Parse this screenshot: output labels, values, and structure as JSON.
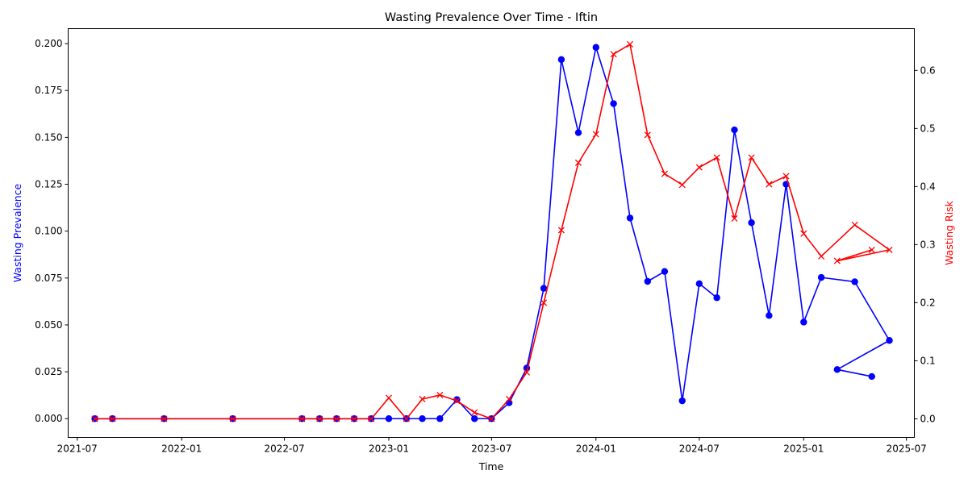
{
  "chart_data": {
    "type": "line",
    "title": "Wasting Prevalence Over Time - Iftin",
    "xlabel": "Time",
    "ylabel_left": "Wasting Prevalence",
    "ylabel_right": "Wasting Risk",
    "x_tick_labels": [
      "2021-07",
      "2022-01",
      "2022-07",
      "2023-01",
      "2023-07",
      "2024-01",
      "2024-07",
      "2025-01",
      "2025-07"
    ],
    "x_tick_dates": [
      "2021-07-01",
      "2022-01-01",
      "2022-07-01",
      "2023-01-01",
      "2023-07-01",
      "2024-01-01",
      "2024-07-01",
      "2025-01-01",
      "2025-07-01"
    ],
    "xlim": [
      "2021-06-15",
      "2025-07-15"
    ],
    "y_left_ticks": [
      "0.000",
      "0.025",
      "0.050",
      "0.075",
      "0.100",
      "0.125",
      "0.150",
      "0.175",
      "0.200"
    ],
    "y_left_lim": [
      -0.01,
      0.208
    ],
    "y_right_ticks": [
      "0.0",
      "0.1",
      "0.2",
      "0.3",
      "0.4",
      "0.5",
      "0.6"
    ],
    "y_right_lim": [
      -0.032,
      0.672
    ],
    "grid": false,
    "legend": "none",
    "colors": {
      "prevalence": "#0000ff",
      "risk": "#ff0000"
    },
    "series": [
      {
        "axis": "left",
        "marker": "circle",
        "color": "#0000ff",
        "points": [
          [
            "2021-08-01",
            0.0
          ],
          [
            "2021-09-01",
            0.0
          ],
          [
            "2021-12-01",
            0.0
          ],
          [
            "2022-04-01",
            0.0
          ],
          [
            "2022-08-01",
            0.0
          ],
          [
            "2022-09-01",
            0.0
          ],
          [
            "2022-10-01",
            0.0
          ],
          [
            "2022-11-01",
            0.0
          ],
          [
            "2022-12-01",
            0.0
          ],
          [
            "2023-01-01",
            0.0
          ],
          [
            "2023-02-01",
            0.0
          ],
          [
            "2023-03-01",
            0.0
          ],
          [
            "2023-04-01",
            0.0
          ],
          [
            "2023-05-01",
            0.0102
          ],
          [
            "2023-06-01",
            0.0
          ],
          [
            "2023-07-01",
            0.0
          ],
          [
            "2023-08-01",
            0.0085
          ],
          [
            "2023-09-01",
            0.027
          ],
          [
            "2023-10-01",
            0.0695
          ],
          [
            "2023-11-01",
            0.1915
          ],
          [
            "2023-12-01",
            0.1525
          ],
          [
            "2024-01-01",
            0.198
          ],
          [
            "2024-02-01",
            0.168
          ],
          [
            "2024-03-01",
            0.107
          ],
          [
            "2024-04-01",
            0.0732
          ],
          [
            "2024-05-01",
            0.0785
          ],
          [
            "2024-06-01",
            0.0095
          ],
          [
            "2024-07-01",
            0.072
          ],
          [
            "2024-08-01",
            0.0645
          ],
          [
            "2024-09-01",
            0.154
          ],
          [
            "2024-10-01",
            0.1045
          ],
          [
            "2024-11-01",
            0.055
          ],
          [
            "2024-12-01",
            0.125
          ],
          [
            "2025-01-01",
            0.0515
          ],
          [
            "2025-02-01",
            0.0753
          ],
          [
            "2025-04-01",
            0.073
          ],
          [
            "2025-06-01",
            0.0417
          ],
          [
            "2025-03-01",
            0.0262
          ],
          [
            "2025-05-01",
            0.0225
          ]
        ]
      },
      {
        "axis": "right",
        "marker": "x",
        "color": "#ff0000",
        "points": [
          [
            "2021-08-01",
            0.0
          ],
          [
            "2021-09-01",
            0.0
          ],
          [
            "2021-12-01",
            0.0
          ],
          [
            "2022-04-01",
            0.0
          ],
          [
            "2022-08-01",
            0.0
          ],
          [
            "2022-09-01",
            0.0
          ],
          [
            "2022-10-01",
            0.0
          ],
          [
            "2022-11-01",
            0.0
          ],
          [
            "2022-12-01",
            0.0
          ],
          [
            "2023-01-01",
            0.036
          ],
          [
            "2023-02-01",
            0.0
          ],
          [
            "2023-03-01",
            0.034
          ],
          [
            "2023-04-01",
            0.041
          ],
          [
            "2023-05-01",
            0.031
          ],
          [
            "2023-06-01",
            0.011
          ],
          [
            "2023-07-01",
            0.0
          ],
          [
            "2023-08-01",
            0.034
          ],
          [
            "2023-09-01",
            0.08
          ],
          [
            "2023-10-01",
            0.2
          ],
          [
            "2023-11-01",
            0.325
          ],
          [
            "2023-12-01",
            0.441
          ],
          [
            "2024-01-01",
            0.49
          ],
          [
            "2024-02-01",
            0.628
          ],
          [
            "2024-03-01",
            0.645
          ],
          [
            "2024-04-01",
            0.489
          ],
          [
            "2024-05-01",
            0.422
          ],
          [
            "2024-06-01",
            0.403
          ],
          [
            "2024-07-01",
            0.433
          ],
          [
            "2024-08-01",
            0.45
          ],
          [
            "2024-09-01",
            0.345
          ],
          [
            "2024-10-01",
            0.45
          ],
          [
            "2024-11-01",
            0.404
          ],
          [
            "2024-12-01",
            0.418
          ],
          [
            "2025-01-01",
            0.319
          ],
          [
            "2025-02-01",
            0.28
          ],
          [
            "2025-04-01",
            0.334
          ],
          [
            "2025-06-01",
            0.291
          ],
          [
            "2025-03-01",
            0.272
          ],
          [
            "2025-05-01",
            0.291
          ]
        ]
      }
    ]
  }
}
